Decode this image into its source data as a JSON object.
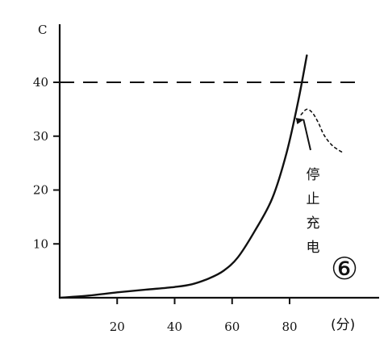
{
  "chart_data": {
    "type": "line",
    "title": "",
    "xlabel": "(分)",
    "ylabel": "C",
    "xlim": [
      0,
      100
    ],
    "ylim": [
      0,
      45
    ],
    "x_ticks": [
      20,
      40,
      60,
      80
    ],
    "y_ticks": [
      10,
      20,
      30,
      40
    ],
    "grid": false,
    "series": [
      {
        "style": "solid",
        "x": [
          0,
          10,
          20,
          30,
          40,
          46,
          52,
          57,
          62,
          68,
          74,
          79,
          83,
          86
        ],
        "y": [
          0,
          0.4,
          1.0,
          1.5,
          2.0,
          2.5,
          3.6,
          5.0,
          7.5,
          12.5,
          18.5,
          27.0,
          36.5,
          45.0
        ]
      },
      {
        "style": "dotted",
        "x": [
          84,
          86,
          88,
          90,
          92,
          95,
          99
        ],
        "y": [
          34.0,
          35.0,
          34.3,
          32.5,
          30.2,
          28.2,
          26.8
        ]
      }
    ],
    "reference_lines": [
      {
        "axis": "y",
        "value": 40,
        "style": "dashed"
      }
    ],
    "annotations": [
      {
        "text": "停止充电",
        "orientation": "vertical",
        "arrow_target": [
          84,
          34
        ]
      }
    ],
    "figure_marker": "⑥"
  }
}
